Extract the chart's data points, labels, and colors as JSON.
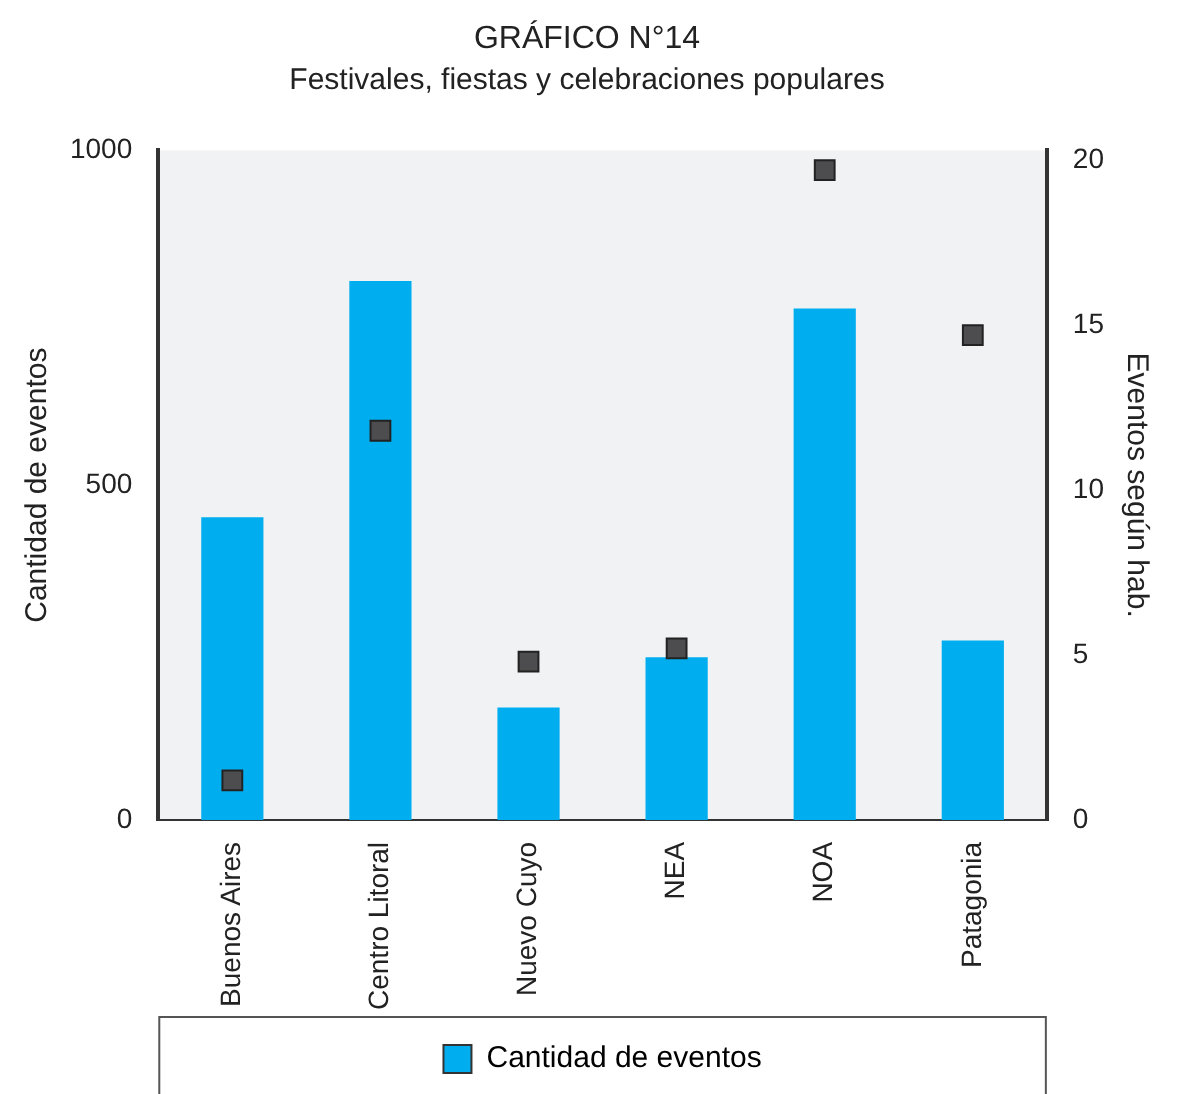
{
  "chart_data": {
    "type": "bar",
    "title": "GRÁFICO N°14",
    "subtitle": "Festivales, fiestas y celebraciones populares",
    "ylabel": "Cantidad de eventos",
    "y2label": "Eventos según hab.",
    "categories": [
      "Buenos Aires",
      "Centro Litoral",
      "Nuevo Cuyo",
      "NEA",
      "NOA",
      "Patagonia"
    ],
    "series": [
      {
        "name": "Cantidad de eventos",
        "color": "#00aeef",
        "values": [
          452,
          805,
          168,
          243,
          764,
          268
        ]
      },
      {
        "type": "scatter",
        "axis": "y2",
        "color": "#4d4d4f",
        "marker": "square",
        "values": [
          1.2,
          11.8,
          4.8,
          5.2,
          19.7,
          14.7
        ]
      }
    ],
    "ylim": [
      0,
      1000
    ],
    "yticks": [
      0,
      500,
      1000
    ],
    "y2lim": [
      0,
      20.3
    ],
    "y2ticks": [
      0,
      5,
      10,
      15,
      20
    ],
    "grid": false,
    "legend": "bottom"
  }
}
